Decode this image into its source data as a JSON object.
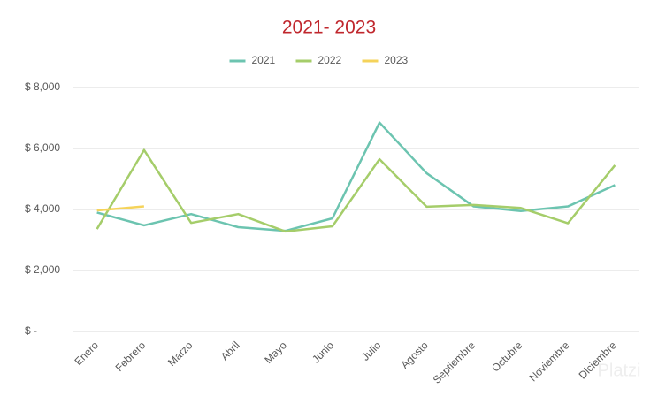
{
  "chart_data": {
    "type": "line",
    "title": "2021- 2023",
    "categories": [
      "Enero",
      "Febrero",
      "Marzo",
      "Abril",
      "Mayo",
      "Junio",
      "Julio",
      "Agosto",
      "Septiembre",
      "Octubre",
      "Noviembre",
      "Diciembre"
    ],
    "series": [
      {
        "name": "2021",
        "color": "#6cc4b0",
        "values": [
          3900,
          3480,
          3850,
          3420,
          3300,
          3710,
          6850,
          5190,
          4100,
          3950,
          4100,
          4800
        ]
      },
      {
        "name": "2022",
        "color": "#a5cd6a",
        "values": [
          3360,
          5950,
          3560,
          3850,
          3280,
          3450,
          5650,
          4090,
          4150,
          4050,
          3550,
          5450
        ]
      },
      {
        "name": "2023",
        "color": "#f5d35a",
        "values": [
          3970,
          4100,
          null,
          null,
          null,
          null,
          null,
          null,
          null,
          null,
          null,
          null
        ]
      }
    ],
    "ylim": [
      0,
      8000
    ],
    "yticks": [
      {
        "value": 0,
        "label": "$ -"
      },
      {
        "value": 2000,
        "label": "$ 2,000"
      },
      {
        "value": 4000,
        "label": "$ 4,000"
      },
      {
        "value": 6000,
        "label": "$ 6,000"
      },
      {
        "value": 8000,
        "label": "$ 8,000"
      }
    ],
    "grid": true,
    "legend": "top",
    "watermark": "Platzi"
  }
}
